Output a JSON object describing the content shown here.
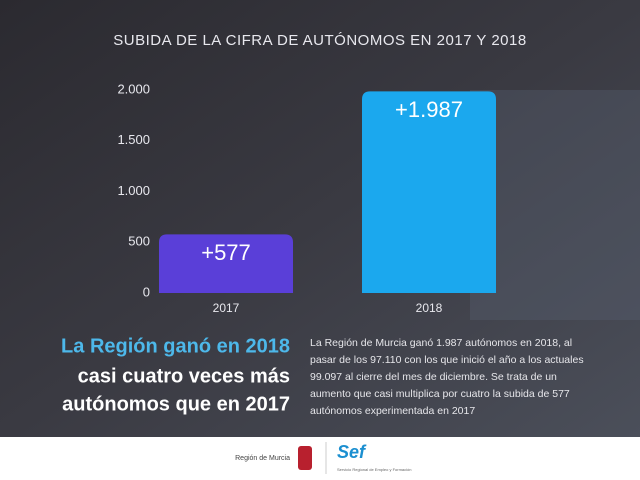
{
  "chart_data": {
    "type": "bar",
    "title": "SUBIDA DE LA CIFRA DE AUTÓNOMOS EN 2017 Y 2018",
    "categories": [
      "2017",
      "2018"
    ],
    "values": [
      577,
      1987
    ],
    "value_labels": [
      "+577",
      "+1.987"
    ],
    "colors": [
      "#5a3fd8",
      "#1ba8ee"
    ],
    "ylim": [
      0,
      2000
    ],
    "yticks": [
      0,
      500,
      {
        "value": 1000,
        "label": "1.000"
      },
      {
        "value": 1500,
        "label": "1.500"
      },
      {
        "value": 2000,
        "label": "2.000"
      }
    ]
  },
  "headline": [
    "La Región ganó en 2018",
    "casi cuatro veces más",
    "autónomos que en 2017"
  ],
  "body": [
    "La Región de Murcia ganó 1.987 autónomos en 2018, al",
    "pasar de los 97.110 con los que inició el año a los actuales",
    "99.097 al cierre del mes de diciembre. Se trata de un",
    "aumento que casi multiplica por cuatro la subida de 577",
    "autónomos experimentada en 2017"
  ],
  "footer": {
    "region": "Región de Murcia",
    "sef": "Sef",
    "sef_sub": "Servicio Regional de Empleo y Formación"
  }
}
